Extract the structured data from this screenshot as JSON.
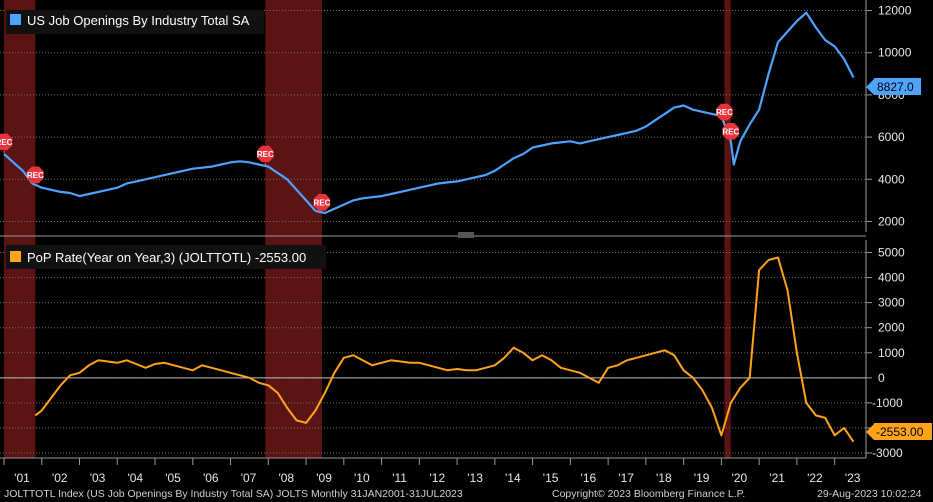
{
  "colors": {
    "background": "#000000",
    "series1": "#4da3ff",
    "series2": "#ffa31a",
    "recession": "#5a1414",
    "recession_marker": "#e8323c",
    "grid": "#6e6e6e",
    "axis": "#9a9a9a"
  },
  "footer": {
    "left": "JOLTTOTL Index (US Job Openings By Industry Total SA) JOLTS  Monthly 31JAN2001-31JUL2023",
    "center": "Copyright© 2023 Bloomberg Finance L.P.",
    "right": "29-Aug-2023 10:02:24"
  },
  "chart_data": [
    {
      "type": "line",
      "panel": "top",
      "legend": "US Job Openings By Industry Total SA",
      "last_value_label": "8827.0",
      "ylim": [
        1500,
        12500
      ],
      "yticks": [
        2000,
        4000,
        6000,
        8000,
        10000,
        12000
      ],
      "ytick_labels": [
        "2000",
        "4000",
        "6000",
        "8000",
        "10000",
        "12000"
      ],
      "grid": true,
      "legend_position": "top-left",
      "x_categories": [
        "'01",
        "'02",
        "'03",
        "'04",
        "'05",
        "'06",
        "'07",
        "'08",
        "'09",
        "'10",
        "'11",
        "'12",
        "'13",
        "'14",
        "'15",
        "'16",
        "'17",
        "'18",
        "'19",
        "'20",
        "'21",
        "'22",
        "'23"
      ],
      "recession_markers_text": "REC",
      "recession_periods": [
        [
          2001.0,
          2001.83
        ],
        [
          2007.92,
          2009.42
        ],
        [
          2020.08,
          2020.25
        ]
      ],
      "series": [
        {
          "name": "US Job Openings By Industry Total SA",
          "x": [
            2001.0,
            2001.25,
            2001.5,
            2001.75,
            2002.0,
            2002.25,
            2002.5,
            2002.75,
            2003.0,
            2003.25,
            2003.5,
            2003.75,
            2004.0,
            2004.25,
            2004.5,
            2004.75,
            2005.0,
            2005.25,
            2005.5,
            2005.75,
            2006.0,
            2006.25,
            2006.5,
            2006.75,
            2007.0,
            2007.25,
            2007.5,
            2007.75,
            2008.0,
            2008.25,
            2008.5,
            2008.75,
            2009.0,
            2009.25,
            2009.5,
            2009.75,
            2010.0,
            2010.25,
            2010.5,
            2010.75,
            2011.0,
            2011.25,
            2011.5,
            2011.75,
            2012.0,
            2012.25,
            2012.5,
            2012.75,
            2013.0,
            2013.25,
            2013.5,
            2013.75,
            2014.0,
            2014.25,
            2014.5,
            2014.75,
            2015.0,
            2015.25,
            2015.5,
            2015.75,
            2016.0,
            2016.25,
            2016.5,
            2016.75,
            2017.0,
            2017.25,
            2017.5,
            2017.75,
            2018.0,
            2018.25,
            2018.5,
            2018.75,
            2019.0,
            2019.25,
            2019.5,
            2019.75,
            2020.0,
            2020.25,
            2020.33,
            2020.5,
            2020.75,
            2021.0,
            2021.25,
            2021.5,
            2021.75,
            2022.0,
            2022.25,
            2022.5,
            2022.75,
            2023.0,
            2023.25,
            2023.5
          ],
          "values": [
            5200,
            4800,
            4400,
            3800,
            3600,
            3500,
            3400,
            3350,
            3200,
            3300,
            3400,
            3500,
            3600,
            3800,
            3900,
            4000,
            4100,
            4200,
            4300,
            4400,
            4500,
            4550,
            4600,
            4700,
            4800,
            4850,
            4800,
            4700,
            4600,
            4300,
            4000,
            3500,
            3000,
            2500,
            2400,
            2600,
            2800,
            3000,
            3100,
            3150,
            3200,
            3300,
            3400,
            3500,
            3600,
            3700,
            3800,
            3850,
            3900,
            4000,
            4100,
            4200,
            4400,
            4700,
            5000,
            5200,
            5500,
            5600,
            5700,
            5750,
            5800,
            5700,
            5800,
            5900,
            6000,
            6100,
            6200,
            6300,
            6500,
            6800,
            7100,
            7400,
            7500,
            7300,
            7200,
            7100,
            7000,
            5800,
            4700,
            5800,
            6600,
            7300,
            9000,
            10500,
            11000,
            11500,
            11900,
            11200,
            10600,
            10300,
            9700,
            8827
          ]
        }
      ]
    },
    {
      "type": "line",
      "panel": "bottom",
      "legend": "PoP Rate(Year on Year,3) (JOLTTOTL) -2553.00",
      "last_value_label": "-2553.00",
      "ylim": [
        -3200,
        5500
      ],
      "yticks": [
        -3000,
        -2000,
        -1000,
        0,
        1000,
        2000,
        3000,
        4000,
        5000
      ],
      "ytick_labels": [
        "-3000",
        "-2000",
        "-1000",
        "0",
        "1000",
        "2000",
        "3000",
        "4000",
        "5000"
      ],
      "grid": true,
      "legend_position": "top-left",
      "series": [
        {
          "name": "PoP Rate(Year on Year,3) (JOLTTOTL)",
          "x": [
            2001.83,
            2002.0,
            2002.25,
            2002.5,
            2002.75,
            2003.0,
            2003.25,
            2003.5,
            2003.75,
            2004.0,
            2004.25,
            2004.5,
            2004.75,
            2005.0,
            2005.25,
            2005.5,
            2005.75,
            2006.0,
            2006.25,
            2006.5,
            2006.75,
            2007.0,
            2007.25,
            2007.5,
            2007.75,
            2008.0,
            2008.25,
            2008.5,
            2008.75,
            2009.0,
            2009.25,
            2009.5,
            2009.75,
            2010.0,
            2010.25,
            2010.5,
            2010.75,
            2011.0,
            2011.25,
            2011.5,
            2011.75,
            2012.0,
            2012.25,
            2012.5,
            2012.75,
            2013.0,
            2013.25,
            2013.5,
            2013.75,
            2014.0,
            2014.25,
            2014.5,
            2014.75,
            2015.0,
            2015.25,
            2015.5,
            2015.75,
            2016.0,
            2016.25,
            2016.5,
            2016.75,
            2017.0,
            2017.25,
            2017.5,
            2017.75,
            2018.0,
            2018.25,
            2018.5,
            2018.75,
            2019.0,
            2019.25,
            2019.5,
            2019.75,
            2020.0,
            2020.25,
            2020.5,
            2020.75,
            2021.0,
            2021.25,
            2021.5,
            2021.75,
            2022.0,
            2022.25,
            2022.5,
            2022.75,
            2023.0,
            2023.25,
            2023.5
          ],
          "values": [
            -1500,
            -1300,
            -800,
            -300,
            100,
            200,
            500,
            700,
            650,
            600,
            700,
            550,
            400,
            550,
            600,
            500,
            400,
            300,
            500,
            400,
            300,
            200,
            100,
            0,
            -200,
            -300,
            -600,
            -1200,
            -1700,
            -1800,
            -1300,
            -600,
            200,
            800,
            900,
            700,
            500,
            600,
            700,
            650,
            600,
            600,
            500,
            400,
            300,
            350,
            300,
            300,
            400,
            500,
            800,
            1200,
            1000,
            700,
            900,
            700,
            400,
            300,
            200,
            0,
            -200,
            400,
            500,
            700,
            800,
            900,
            1000,
            1100,
            900,
            300,
            0,
            -500,
            -1200,
            -2300,
            -1000,
            -400,
            0,
            4300,
            4700,
            4800,
            3500,
            1000,
            -1000,
            -1500,
            -1600,
            -2300,
            -2000,
            -2553
          ]
        }
      ]
    }
  ]
}
